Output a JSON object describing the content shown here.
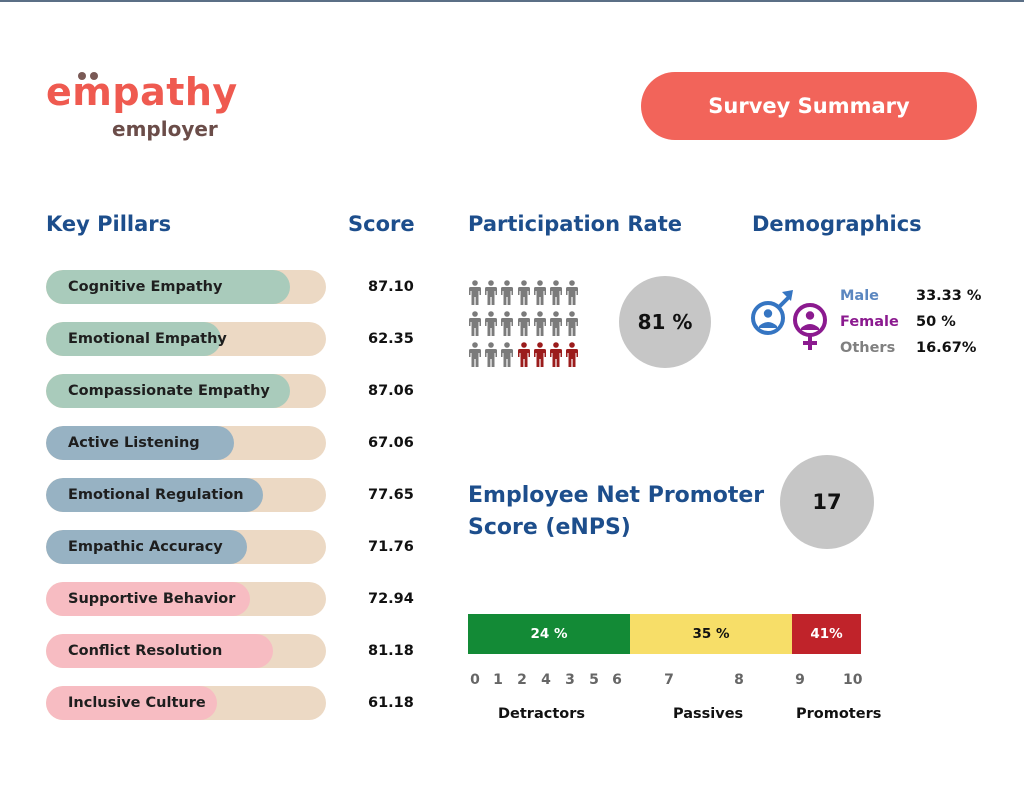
{
  "brand": {
    "word": "empathy",
    "sub": "employer",
    "color": "#ef5a50"
  },
  "header": {
    "summary_label": "Survey Summary",
    "summary_color": "#f2645a"
  },
  "pillars": {
    "title": "Key Pillars",
    "score_title": "Score",
    "items": [
      {
        "label": "Cognitive Empathy",
        "score": "87.10",
        "value": 87.1,
        "color": "#a9cbbb"
      },
      {
        "label": "Emotional Empathy",
        "score": "62.35",
        "value": 62.35,
        "color": "#a9cbbb"
      },
      {
        "label": "Compassionate Empathy",
        "score": "87.06",
        "value": 87.06,
        "color": "#a9cbbb"
      },
      {
        "label": "Active Listening",
        "score": "67.06",
        "value": 67.06,
        "color": "#97b2c3"
      },
      {
        "label": "Emotional Regulation",
        "score": "77.65",
        "value": 77.65,
        "color": "#97b2c3"
      },
      {
        "label": "Empathic Accuracy",
        "score": "71.76",
        "value": 71.76,
        "color": "#97b2c3"
      },
      {
        "label": "Supportive Behavior",
        "score": "72.94",
        "value": 72.94,
        "color": "#f7bcc2"
      },
      {
        "label": "Conflict Resolution",
        "score": "81.18",
        "value": 81.18,
        "color": "#f7bcc2"
      },
      {
        "label": "Inclusive Culture",
        "score": "61.18",
        "value": 61.18,
        "color": "#f7bcc2"
      }
    ]
  },
  "participation": {
    "title": "Participation Rate",
    "rate": "81 %",
    "icons": {
      "total": 21,
      "highlighted": 4,
      "grey": "#7b7b7b",
      "red": "#9b1c1c"
    }
  },
  "demographics": {
    "title": "Demographics",
    "items": [
      {
        "label": "Male",
        "value": "33.33 %",
        "color": "#5b87c0"
      },
      {
        "label": "Female",
        "value": "50 %",
        "color": "#8b1a8f"
      },
      {
        "label": "Others",
        "value": "16.67%",
        "color": "#808080"
      }
    ],
    "male_icon_color": "#3575c2",
    "female_icon_color": "#8b1a8f"
  },
  "enps": {
    "title": "Employee Net Promoter Score (eNPS)",
    "score": "17",
    "segments": [
      {
        "label": "24 %",
        "color": "#138a36",
        "text_color": "#ffffff"
      },
      {
        "label": "35 %",
        "color": "#f7de68",
        "text_color": "#111111"
      },
      {
        "label": "41%",
        "color": "#c0232a",
        "text_color": "#ffffff"
      }
    ],
    "ticks": [
      "0",
      "1",
      "2",
      "4",
      "3",
      "5",
      "6",
      "7",
      "8",
      "9",
      "10"
    ],
    "categories": [
      "Detractors",
      "Passives",
      "Promoters"
    ]
  }
}
